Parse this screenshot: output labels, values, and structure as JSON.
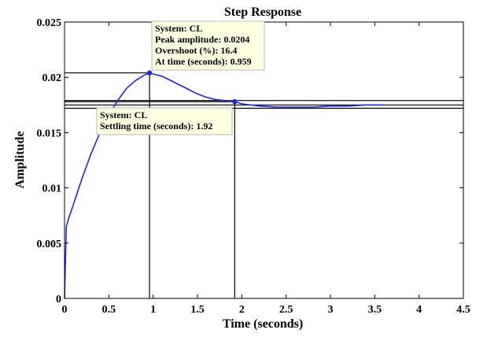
{
  "chart_data": {
    "type": "line",
    "title": "Step Response",
    "xlabel": "Time (seconds)",
    "ylabel": "Amplitude",
    "xlim": [
      0,
      4.5
    ],
    "ylim": [
      0,
      0.025
    ],
    "x_ticks": [
      "0",
      "0.5",
      "1",
      "1.5",
      "2",
      "2.5",
      "3",
      "3.5",
      "4",
      "4.5"
    ],
    "y_ticks": [
      "0",
      "0.005",
      "0.01",
      "0.015",
      "0.02",
      "0.025"
    ],
    "grid": false,
    "colors": {
      "line": "#1f2bd0",
      "marker": "#1f2bd0",
      "frame": "#000000",
      "tip_bg": "#ffffe1"
    },
    "series": [
      {
        "x": [
          0,
          0.02,
          0.05,
          0.1,
          0.15,
          0.2,
          0.3,
          0.4,
          0.5,
          0.6,
          0.7,
          0.8,
          0.9,
          0.959,
          1.0,
          1.1,
          1.2,
          1.3,
          1.4,
          1.5,
          1.6,
          1.7,
          1.8,
          1.92,
          2.0,
          2.2,
          2.4,
          2.6,
          2.8,
          3.0,
          3.2,
          3.4,
          3.6
        ],
        "y": [
          0,
          0.0065,
          0.0073,
          0.0085,
          0.0097,
          0.0109,
          0.0131,
          0.015,
          0.0166,
          0.0179,
          0.019,
          0.0197,
          0.0202,
          0.0204,
          0.0203,
          0.0201,
          0.0197,
          0.0193,
          0.0189,
          0.0185,
          0.0182,
          0.018,
          0.0179,
          0.0178,
          0.0176,
          0.0174,
          0.0173,
          0.0173,
          0.0173,
          0.0174,
          0.0174,
          0.0175,
          0.0175
        ]
      }
    ],
    "settling_band": [
      0.0172,
      0.0175,
      0.0179
    ],
    "annotations": [
      {
        "id": "peak",
        "x": 0.959,
        "y": 0.0204,
        "lines": [
          "System: CL",
          "Peak amplitude: 0.0204",
          "Overshoot (%): 16.4",
          "At time (seconds): 0.959"
        ]
      },
      {
        "id": "settling",
        "x": 1.92,
        "y": 0.0178,
        "lines": [
          "System: CL",
          "Settling time (seconds): 1.92"
        ]
      }
    ]
  }
}
